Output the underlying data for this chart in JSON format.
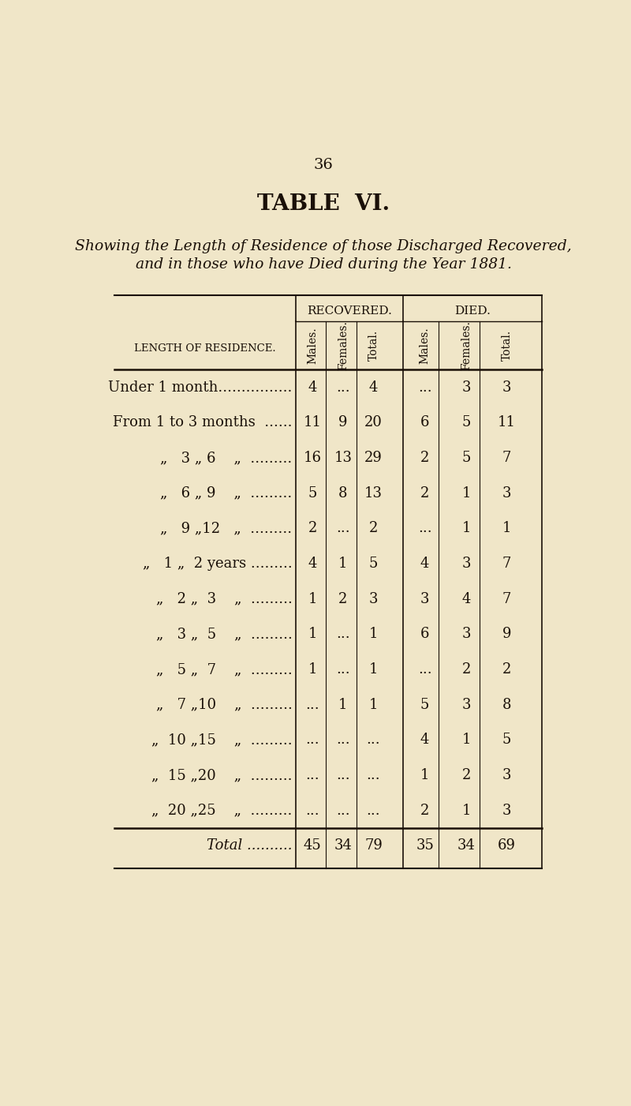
{
  "page_number": "36",
  "title": "TABLE  VI.",
  "subtitle_line1": "Showing the Length of Residence of those Discharged Recovered,",
  "subtitle_line2": "and in those who have Died during the Year 1881.",
  "col_header_left": "LENGTH OF RESIDENCE.",
  "group_headers": [
    "RECOVERED.",
    "DIED."
  ],
  "col_headers": [
    "Males.",
    "Females.",
    "Total.",
    "Males.",
    "Females.",
    "Total."
  ],
  "rows": [
    {
      "label": "Under 1 month................",
      "rec_m": "4",
      "rec_f": "...",
      "rec_t": "4",
      "die_m": "...",
      "die_f": "3",
      "die_t": "3"
    },
    {
      "label": "From 1 to 3 months  ......",
      "rec_m": "11",
      "rec_f": "9",
      "rec_t": "20",
      "die_m": "6",
      "die_f": "5",
      "die_t": "11"
    },
    {
      "label": "„  3 „ 6   „  .........",
      "rec_m": "16",
      "rec_f": "13",
      "rec_t": "29",
      "die_m": "2",
      "die_f": "5",
      "die_t": "7"
    },
    {
      "label": "„  6 „ 9   „  .........",
      "rec_m": "5",
      "rec_f": "8",
      "rec_t": "13",
      "die_m": "2",
      "die_f": "1",
      "die_t": "3"
    },
    {
      "label": "„  9 „12  „  .........",
      "rec_m": "2",
      "rec_f": "...",
      "rec_t": "2",
      "die_m": "...",
      "die_f": "1",
      "die_t": "1"
    },
    {
      "label": "„  1 „  2 years .........",
      "rec_m": "4",
      "rec_f": "1",
      "rec_t": "5",
      "die_m": "4",
      "die_f": "3",
      "die_t": "7"
    },
    {
      "label": "„  2 „  3   „  .........",
      "rec_m": "1",
      "rec_f": "2",
      "rec_t": "3",
      "die_m": "3",
      "die_f": "4",
      "die_t": "7"
    },
    {
      "label": "„  3 „  5   „  .........",
      "rec_m": "1",
      "rec_f": "...",
      "rec_t": "1",
      "die_m": "6",
      "die_f": "3",
      "die_t": "9"
    },
    {
      "label": "„  5 „  7   „  .........",
      "rec_m": "1",
      "rec_f": "...",
      "rec_t": "1",
      "die_m": "...",
      "die_f": "2",
      "die_t": "2"
    },
    {
      "label": "„  7 „10   „  .........",
      "rec_m": "...",
      "rec_f": "1",
      "rec_t": "1",
      "die_m": "5",
      "die_f": "3",
      "die_t": "8"
    },
    {
      "label": "„ 10 „15   „  .........",
      "rec_m": "...",
      "rec_f": "...",
      "rec_t": "...",
      "die_m": "4",
      "die_f": "1",
      "die_t": "5"
    },
    {
      "label": "„ 15 „20   „  .........",
      "rec_m": "...",
      "rec_f": "...",
      "rec_t": "...",
      "die_m": "1",
      "die_f": "2",
      "die_t": "3"
    },
    {
      "label": "„ 20 „25   „  .........",
      "rec_m": "...",
      "rec_f": "...",
      "rec_t": "...",
      "die_m": "2",
      "die_f": "1",
      "die_t": "3"
    }
  ],
  "total_row": {
    "rec_m": "45",
    "rec_f": "34",
    "rec_t": "79",
    "die_m": "35",
    "die_f": "34",
    "die_t": "69"
  },
  "background_color": "#f0e6c8",
  "text_color": "#1a1008",
  "line_color": "#1a1008"
}
